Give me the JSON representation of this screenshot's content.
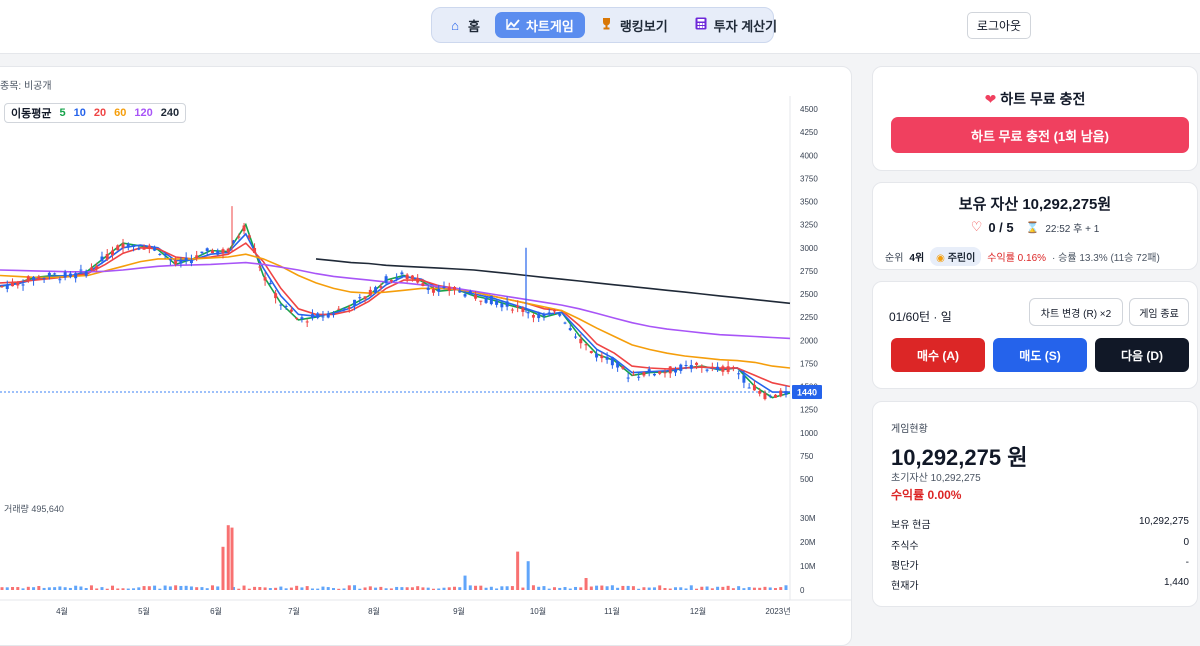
{
  "nav": {
    "items": [
      {
        "label": "홈",
        "icon": "home-icon"
      },
      {
        "label": "차트게임",
        "icon": "chart-icon"
      },
      {
        "label": "랭킹보기",
        "icon": "trophy-icon"
      },
      {
        "label": "투자 계산기",
        "icon": "calculator-icon"
      }
    ],
    "active_index": 1,
    "logout_label": "로그아웃"
  },
  "chart": {
    "stock_label": "종목: 비공개",
    "ma_legend": {
      "title": "이동평균",
      "periods": [
        "5",
        "10",
        "20",
        "60",
        "120",
        "240"
      ]
    },
    "volume_label": "거래량 495,640",
    "current_price_label": "1440"
  },
  "chart_data": {
    "type": "candlestick",
    "price_axis": {
      "ticks": [
        "4500",
        "4250",
        "4000",
        "3750",
        "3500",
        "3250",
        "3000",
        "2750",
        "2500",
        "2250",
        "2000",
        "1750",
        "1500",
        "1250",
        "1000",
        "750",
        "500"
      ],
      "range": [
        500,
        4500
      ]
    },
    "volume_axis": {
      "ticks": [
        "30M",
        "20M",
        "10M",
        "0"
      ],
      "range": [
        0,
        30000000
      ]
    },
    "x_ticks": [
      "4월",
      "5월",
      "6월",
      "7월",
      "8월",
      "9월",
      "10월",
      "11월",
      "12월",
      "2023년"
    ],
    "last_price": 1440,
    "last_volume": 495640,
    "moving_averages": [
      {
        "name": "5",
        "color": "#16a34a",
        "values": [
          2580,
          2620,
          2680,
          2700,
          2690,
          2750,
          2900,
          3050,
          3020,
          2980,
          2820,
          2880,
          2970,
          2960,
          3250,
          2700,
          2400,
          2220,
          2250,
          2300,
          2380,
          2480,
          2650,
          2700,
          2640,
          2530,
          2550,
          2480,
          2440,
          2380,
          2330,
          2250,
          2300,
          2050,
          1850,
          1780,
          1620,
          1650,
          1660,
          1700,
          1720,
          1680,
          1700,
          1500,
          1380,
          1430
        ]
      },
      {
        "name": "10",
        "color": "#2563eb",
        "values": [
          2590,
          2610,
          2660,
          2690,
          2700,
          2730,
          2860,
          3000,
          3030,
          3000,
          2860,
          2870,
          2930,
          2950,
          3150,
          2780,
          2480,
          2280,
          2260,
          2290,
          2350,
          2450,
          2600,
          2690,
          2660,
          2560,
          2550,
          2500,
          2460,
          2400,
          2340,
          2280,
          2300,
          2100,
          1900,
          1800,
          1650,
          1660,
          1670,
          1700,
          1710,
          1690,
          1700,
          1560,
          1440,
          1440
        ]
      },
      {
        "name": "20",
        "color": "#ef4444",
        "values": [
          2620,
          2630,
          2650,
          2670,
          2690,
          2720,
          2820,
          2940,
          3000,
          2990,
          2900,
          2880,
          2900,
          2930,
          3050,
          2850,
          2560,
          2340,
          2280,
          2280,
          2320,
          2420,
          2560,
          2650,
          2650,
          2590,
          2560,
          2520,
          2480,
          2440,
          2400,
          2340,
          2320,
          2160,
          1960,
          1860,
          1720,
          1700,
          1690,
          1700,
          1710,
          1700,
          1700,
          1620,
          1540,
          1500
        ]
      },
      {
        "name": "60",
        "color": "#f59e0b",
        "values": [
          2700,
          2690,
          2680,
          2680,
          2690,
          2700,
          2750,
          2800,
          2850,
          2880,
          2880,
          2880,
          2890,
          2900,
          2930,
          2880,
          2800,
          2700,
          2620,
          2560,
          2520,
          2510,
          2520,
          2540,
          2560,
          2560,
          2550,
          2520,
          2480,
          2440,
          2400,
          2360,
          2320,
          2230,
          2130,
          2040,
          1950,
          1900,
          1860,
          1830,
          1810,
          1790,
          1780,
          1760,
          1720,
          1700
        ]
      },
      {
        "name": "120",
        "color": "#a855f7",
        "values": [
          2760,
          2755,
          2750,
          2745,
          2740,
          2740,
          2745,
          2760,
          2780,
          2800,
          2810,
          2815,
          2820,
          2830,
          2840,
          2820,
          2790,
          2760,
          2720,
          2690,
          2670,
          2650,
          2630,
          2620,
          2600,
          2580,
          2560,
          2530,
          2500,
          2470,
          2440,
          2410,
          2380,
          2340,
          2290,
          2240,
          2190,
          2150,
          2120,
          2100,
          2080,
          2060,
          2050,
          2040,
          2030,
          2020
        ]
      },
      {
        "name": "240",
        "color": "#1f2937",
        "values": [
          null,
          null,
          null,
          null,
          null,
          null,
          null,
          null,
          null,
          null,
          null,
          null,
          null,
          null,
          null,
          null,
          null,
          null,
          2880,
          2860,
          2840,
          2830,
          2810,
          2800,
          2790,
          2780,
          2770,
          2760,
          2740,
          2720,
          2700,
          2680,
          2660,
          2640,
          2620,
          2600,
          2580,
          2560,
          2540,
          2520,
          2500,
          2480,
          2460,
          2440,
          2420,
          2400
        ]
      }
    ]
  },
  "heart_card": {
    "title": "하트 무료 충전",
    "button_label": "하트 무료 충전 (1회 남음)"
  },
  "asset_card": {
    "title": "보유 자산 10,292,275원",
    "lives": "0 / 5",
    "timer": "22:52 후 + 1",
    "rank_label": "순위",
    "rank_value": "4위",
    "user_name": "주린이",
    "profit_rate": "수익률 0.16%",
    "win_rate": "· 승률 13.3% (11승 72패)"
  },
  "control_card": {
    "turn_label": "01/60턴 · 일",
    "change_chart_label": "차트 변경 (R) ×2",
    "end_game_label": "게임 종료",
    "buy_label": "매수 (A)",
    "sell_label": "매도 (S)",
    "next_label": "다음 (D)"
  },
  "status_card": {
    "title": "게임현황",
    "total_value": "10,292,275 원",
    "initial_asset": "초기자산 10,292,275",
    "profit_rate": "수익률 0.00%",
    "rows": [
      {
        "label": "보유 현금",
        "value": "10,292,275"
      },
      {
        "label": "주식수",
        "value": "0"
      },
      {
        "label": "평단가",
        "value": "-"
      },
      {
        "label": "현재가",
        "value": "1,440"
      }
    ]
  },
  "colors": {
    "up": "#ef4444",
    "down": "#2563eb",
    "accent": "#5b8def",
    "heart": "#f0405f",
    "buy": "#dc2626",
    "sell": "#2563eb",
    "next": "#111827"
  }
}
